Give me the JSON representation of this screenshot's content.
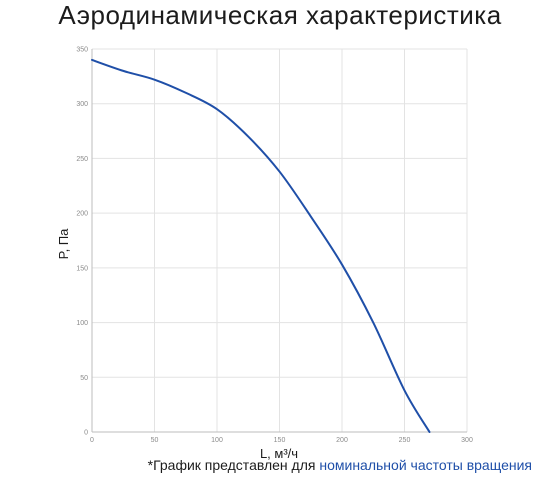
{
  "title": "Аэродинамическая характеристика",
  "footnote": {
    "prefix": "*График представлен для ",
    "highlight": "номинальной частоты вращения"
  },
  "colors": {
    "curve": "#1f4fa8",
    "grid": "#e3e3e3",
    "tick": "#8a8a8a",
    "highlight": "#1f4fa8"
  },
  "chart_data": {
    "type": "line",
    "xlabel": "L, м³/ч",
    "ylabel": "P, Па",
    "xlim": [
      0,
      300
    ],
    "ylim": [
      0,
      350
    ],
    "x_ticks": [
      0,
      50,
      100,
      150,
      200,
      250,
      300
    ],
    "y_ticks": [
      0,
      50,
      100,
      150,
      200,
      250,
      300,
      350
    ],
    "grid": true,
    "series": [
      {
        "x": [
          0,
          25,
          50,
          75,
          100,
          125,
          150,
          175,
          200,
          225,
          250,
          270
        ],
        "y": [
          340,
          330,
          322,
          310,
          295,
          270,
          238,
          197,
          153,
          100,
          38,
          0
        ]
      }
    ]
  }
}
